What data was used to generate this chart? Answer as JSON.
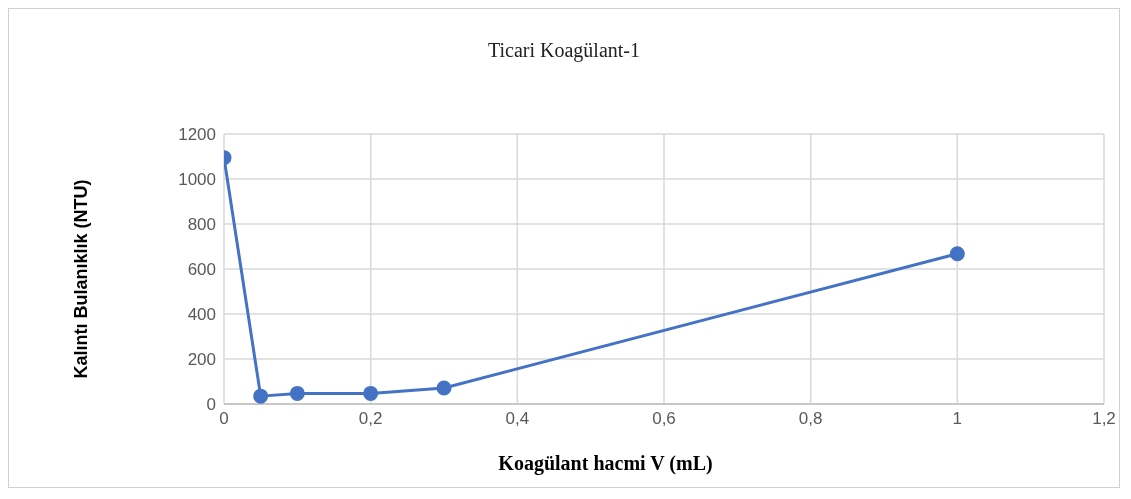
{
  "chart_data": {
    "type": "line",
    "title": "Ticari Koagülant-1",
    "xlabel": "Koagülant hacmi V (mL)",
    "ylabel": "Kalıntı Bulanıklık (NTU)",
    "x": [
      0,
      0.05,
      0.1,
      0.2,
      0.3,
      1
    ],
    "series": [
      {
        "color": "#4472c4",
        "values": [
          1095,
          35,
          47,
          47,
          71,
          668
        ]
      }
    ],
    "xlim": [
      0,
      1.2
    ],
    "xticks": [
      {
        "value": 0,
        "label": "0"
      },
      {
        "value": 0.2,
        "label": "0,2"
      },
      {
        "value": 0.4,
        "label": "0,4"
      },
      {
        "value": 0.6,
        "label": "0,6"
      },
      {
        "value": 0.8,
        "label": "0,8"
      },
      {
        "value": 1,
        "label": "1"
      },
      {
        "value": 1.2,
        "label": "1,2"
      }
    ],
    "ylim": [
      0,
      1200
    ],
    "yticks": [
      0,
      200,
      400,
      600,
      800,
      1000,
      1200
    ],
    "grid": true,
    "marker": "circle",
    "line_style": "solid"
  }
}
